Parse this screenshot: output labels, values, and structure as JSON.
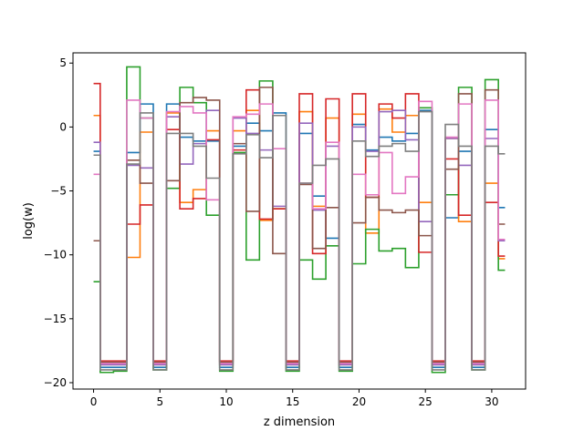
{
  "chart_data": {
    "type": "line",
    "drawstyle": "steps-mid",
    "title": "",
    "xlabel": "z dimension",
    "ylabel": "log(w)",
    "xlim": [
      -1.55,
      32.55
    ],
    "ylim": [
      -20.5,
      5.8
    ],
    "xticks": [
      0,
      5,
      10,
      15,
      20,
      25,
      30
    ],
    "yticks": [
      5,
      0,
      -5,
      -10,
      -15,
      -20
    ],
    "grid": false,
    "legend": "none",
    "x": [
      0,
      1,
      2,
      3,
      4,
      5,
      6,
      7,
      8,
      9,
      10,
      11,
      12,
      13,
      14,
      15,
      16,
      17,
      18,
      19,
      20,
      21,
      22,
      23,
      24,
      25,
      26,
      27,
      28,
      29,
      30,
      31
    ],
    "series": [
      {
        "color": "#1f77b4",
        "values": [
          -1.9,
          -18.8,
          -18.8,
          -2.0,
          1.8,
          -18.8,
          1.8,
          -0.8,
          -1.1,
          -1.1,
          -18.8,
          -1.5,
          0.3,
          -0.3,
          1.1,
          -18.8,
          -0.5,
          -5.4,
          -8.7,
          -18.8,
          0.2,
          -1.8,
          -0.8,
          -1.1,
          -0.5,
          1.3,
          -18.8,
          -7.1,
          -1.9,
          -18.8,
          -0.2,
          -6.3
        ]
      },
      {
        "color": "#ff7f0e",
        "values": [
          0.9,
          -18.6,
          -18.6,
          -10.2,
          -0.4,
          -18.6,
          1.1,
          -5.9,
          -4.9,
          -0.3,
          -18.6,
          -0.3,
          1.3,
          -7.3,
          -6.4,
          -18.6,
          1.2,
          -6.2,
          0.7,
          -18.6,
          1.0,
          -8.3,
          1.4,
          -0.4,
          0.9,
          -5.9,
          -18.6,
          -0.9,
          -7.4,
          -18.6,
          -4.4,
          -10.3
        ]
      },
      {
        "color": "#2ca02c",
        "values": [
          -12.1,
          -19.2,
          -19.1,
          4.7,
          0.7,
          -19.0,
          -4.8,
          3.1,
          1.9,
          -6.9,
          -19.1,
          -2.0,
          -10.4,
          3.6,
          -6.4,
          -19.1,
          -10.4,
          -11.9,
          -9.3,
          -19.1,
          -10.7,
          -8.0,
          -9.7,
          -9.5,
          -11.0,
          1.5,
          -19.2,
          -5.3,
          3.1,
          -19.0,
          3.7,
          -11.2
        ]
      },
      {
        "color": "#d62728",
        "values": [
          3.4,
          -18.3,
          -18.3,
          -7.6,
          -6.1,
          -18.3,
          -0.2,
          -6.4,
          -5.6,
          -1.0,
          -18.3,
          -1.8,
          2.9,
          -7.2,
          -6.4,
          -18.3,
          2.6,
          -9.9,
          2.2,
          -18.3,
          2.6,
          -5.5,
          1.8,
          0.7,
          2.6,
          -9.8,
          -18.3,
          -2.5,
          -6.9,
          -18.3,
          -5.9,
          -10.1
        ]
      },
      {
        "color": "#9467bd",
        "values": [
          -1.2,
          -18.6,
          -18.6,
          -3.0,
          -3.2,
          -18.6,
          0.8,
          -2.9,
          -1.3,
          1.3,
          -18.6,
          0.7,
          -0.5,
          -1.8,
          -6.2,
          -18.6,
          0.3,
          -6.5,
          -1.5,
          -18.6,
          0.0,
          -1.9,
          1.2,
          1.3,
          -1.0,
          -7.4,
          -18.6,
          -0.9,
          -3.0,
          -18.6,
          -0.9,
          -8.9
        ]
      },
      {
        "color": "#8c564b",
        "values": [
          -8.9,
          -18.4,
          -18.4,
          -2.6,
          -4.4,
          -18.4,
          -4.2,
          1.9,
          2.3,
          2.1,
          -18.4,
          -1.3,
          -6.6,
          3.1,
          -9.9,
          -18.4,
          -4.5,
          -9.5,
          -6.3,
          -18.4,
          -7.5,
          -5.5,
          -6.5,
          -6.7,
          -6.5,
          -8.5,
          -18.4,
          -3.3,
          2.6,
          -18.4,
          2.9,
          -7.6
        ]
      },
      {
        "color": "#e377c2",
        "values": [
          -3.7,
          -18.5,
          -18.5,
          2.1,
          0.7,
          -18.5,
          1.2,
          1.6,
          1.1,
          -5.7,
          -18.5,
          0.8,
          1.0,
          1.8,
          -1.7,
          -18.5,
          -4.4,
          -6.4,
          -1.2,
          -18.5,
          -3.7,
          -5.3,
          -2.0,
          -5.2,
          -3.9,
          2.0,
          -18.5,
          -0.8,
          1.8,
          -18.5,
          2.1,
          -8.8
        ]
      },
      {
        "color": "#7f7f7f",
        "values": [
          -2.2,
          -19.0,
          -19.0,
          -2.9,
          1.1,
          -19.0,
          -0.5,
          -0.5,
          -1.5,
          -4.0,
          -19.0,
          -2.1,
          -0.6,
          -2.4,
          0.9,
          -19.0,
          -4.4,
          -3.0,
          -2.5,
          -19.0,
          -1.1,
          -2.3,
          -1.5,
          -1.3,
          -1.9,
          1.2,
          -19.0,
          0.2,
          -1.5,
          -19.0,
          -1.5,
          -2.1
        ]
      }
    ]
  }
}
